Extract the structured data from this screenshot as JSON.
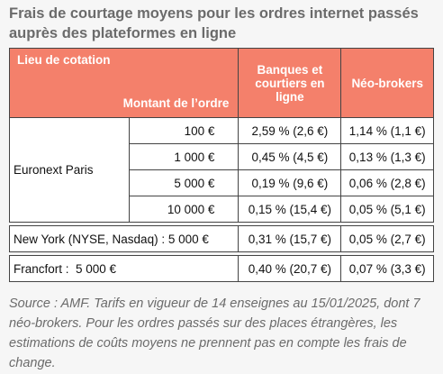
{
  "header": {
    "title": "Frais de courtage moyens pour les ordres internet passés auprès des plateformes en ligne"
  },
  "table": {
    "columns": [
      "Lieu de cotation",
      "Montant de l’ordre",
      "Banques et courtiers en ligne",
      "Néo-brokers"
    ],
    "groups": [
      {
        "label": "Euronext Paris",
        "rows": [
          [
            "100 €",
            "2,59 % (2,6 €)",
            "1,14 % (1,1 €)"
          ],
          [
            "1 000 €",
            "0,45 % (4,5 €)",
            "0,13 % (1,3 €)"
          ],
          [
            "5 000 €",
            "0,19 % (9,6 €)",
            "0,06 % (2,8 €)"
          ],
          [
            "10 000 €",
            "0,15 % (15,4 €)",
            "0,05 % (5,1 €)"
          ]
        ]
      },
      {
        "label": "New York (NYSE, Nasdaq) : 5 000 €",
        "rows": [
          [
            "0,31 % (15,7 €)",
            "0,05 % (2,7 €)"
          ]
        ]
      },
      {
        "label": "Francfort :  5 000 €",
        "rows": [
          [
            "0,40 % (20,7 €)",
            "0,07 % (3,3 €)"
          ]
        ]
      }
    ]
  },
  "source": "Source : AMF. Tarifs en vigueur de 14 enseignes au 15/01/2025, dont 7 néo-brokers. Pour les ordres passés sur des places étrangères, les estimations de coûts moyens ne prennent pas en compte les frais de change."
}
